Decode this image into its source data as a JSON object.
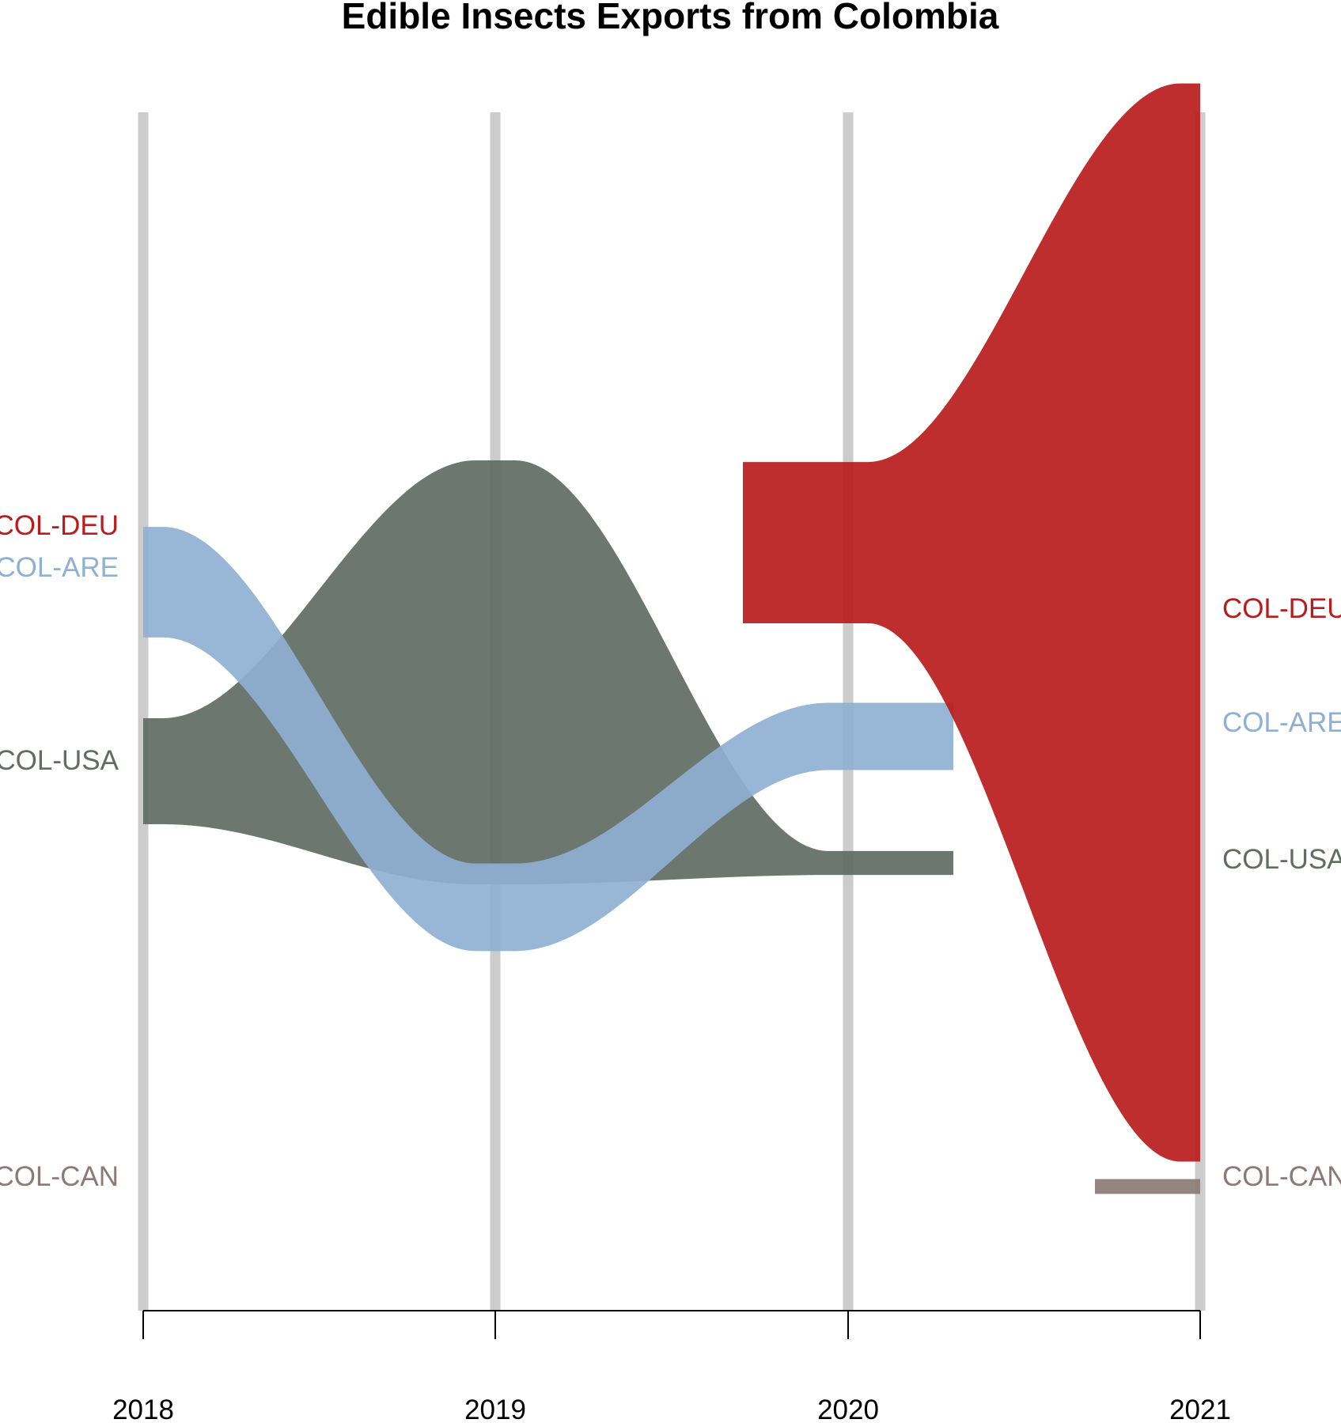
{
  "chart_data": {
    "type": "area",
    "title": "Edible Insects Exports from Colombia",
    "xlabel": "",
    "ylabel": "",
    "x": [
      "2018",
      "2019",
      "2020",
      "2021"
    ],
    "grid": true,
    "series": [
      {
        "name": "COL-DEU",
        "color": "#b91c1c",
        "values": [
          null,
          null,
          0.175,
          1.17
        ],
        "start_label": "COL-DEU",
        "end_label": "COL-DEU"
      },
      {
        "name": "COL-ARE",
        "color": "#8fb0d1",
        "values": [
          0.12,
          0.095,
          0.073,
          null
        ],
        "start_label": "COL-ARE",
        "end_label": "COL-ARE"
      },
      {
        "name": "COL-USA",
        "color": "#5f6d63",
        "values": [
          0.115,
          0.46,
          0.026,
          null
        ],
        "start_label": "COL-USA",
        "end_label": "COL-USA"
      },
      {
        "name": "COL-CAN",
        "color": "#8c7b75",
        "values": [
          null,
          null,
          null,
          0.016
        ],
        "start_label": "COL-CAN",
        "end_label": "COL-CAN"
      }
    ]
  }
}
